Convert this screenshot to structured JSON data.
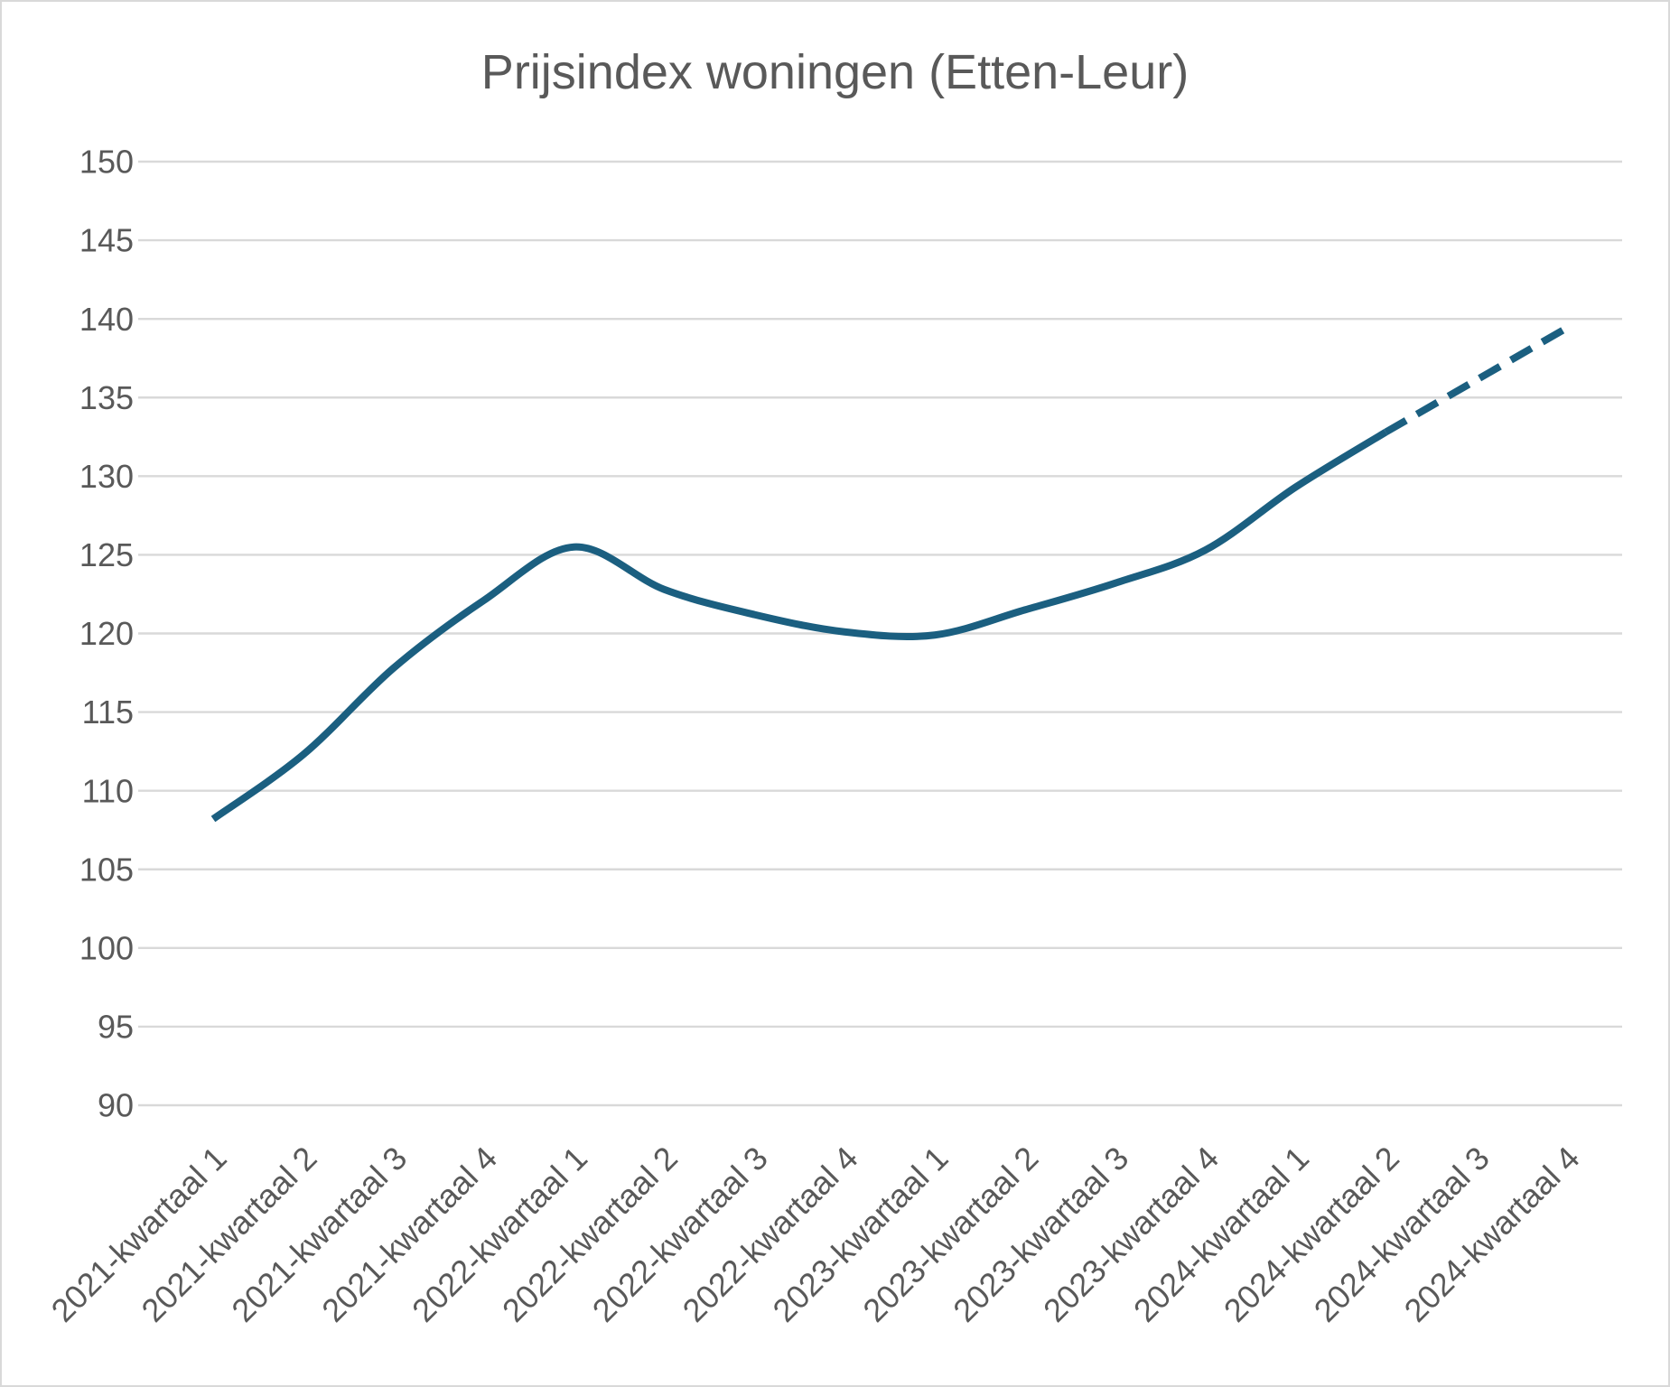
{
  "chart_data": {
    "type": "line",
    "title": "Prijsindex woningen (Etten-Leur)",
    "categories": [
      "2021-kwartaal 1",
      "2021-kwartaal 2",
      "2021-kwartaal 3",
      "2021-kwartaal 4",
      "2022-kwartaal 1",
      "2022-kwartaal 2",
      "2022-kwartaal 3",
      "2022-kwartaal 4",
      "2023-kwartaal 1",
      "2023-kwartaal 2",
      "2023-kwartaal 3",
      "2023-kwartaal 4",
      "2024-kwartaal 1",
      "2024-kwartaal 2",
      "2024-kwartaal 3",
      "2024-kwartaal 4"
    ],
    "series": [
      {
        "values": [
          108.2,
          112.3,
          117.8,
          122.1,
          125.5,
          122.8,
          121.2,
          120.1,
          119.9,
          121.5,
          123.2,
          125.3,
          129.3,
          132.8,
          null,
          null
        ],
        "line_style": "solid",
        "color": "#1b5f80"
      },
      {
        "values": [
          null,
          null,
          null,
          null,
          null,
          null,
          null,
          null,
          null,
          null,
          null,
          null,
          null,
          132.8,
          136.1,
          139.4
        ],
        "line_style": "dashed",
        "color": "#1b5f80"
      }
    ],
    "ylim": [
      90,
      150
    ],
    "yticks": [
      150,
      145,
      140,
      135,
      130,
      125,
      120,
      115,
      110,
      105,
      100,
      95,
      90
    ],
    "grid": true,
    "legend": "none",
    "smooth": true
  },
  "colors": {
    "text": "#595959",
    "grid": "#d9d9d9",
    "border": "#d9d9d9",
    "background": "#ffffff"
  }
}
